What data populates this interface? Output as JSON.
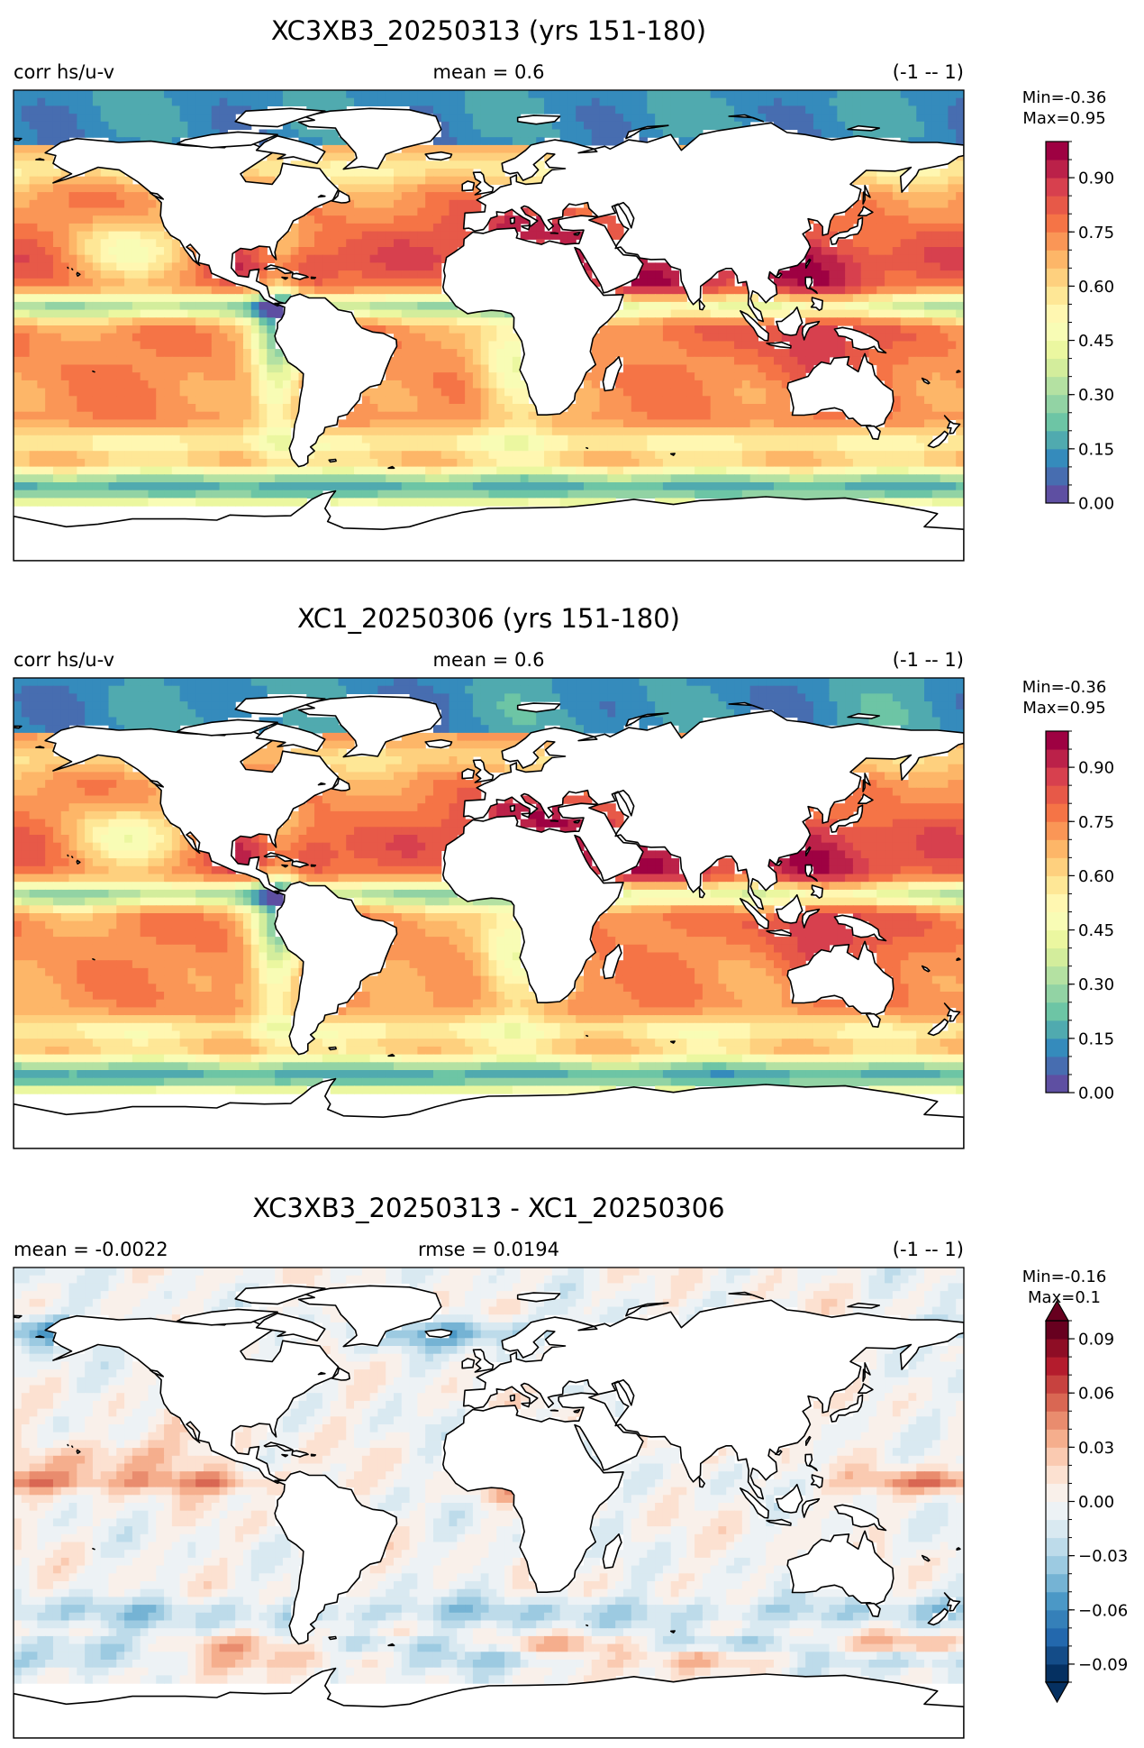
{
  "chart_data": [
    {
      "type": "heatmap",
      "title": "XC3XB3_20250313 (yrs 151-180)",
      "left_label": "corr hs/u-v",
      "center_label": "mean = 0.6",
      "right_label": "(-1 -- 1)",
      "colorbar": {
        "stats": [
          "Min=-0.36",
          "Max=0.95"
        ],
        "range": [
          0,
          1
        ],
        "extend": false,
        "colormap": "Spectral_r",
        "ticks": [
          "0.00",
          "0.15",
          "0.30",
          "0.45",
          "0.60",
          "0.75",
          "0.90"
        ],
        "tick_values": [
          0,
          0.15,
          0.3,
          0.45,
          0.6,
          0.75,
          0.9
        ],
        "levels": 20
      }
    },
    {
      "type": "heatmap",
      "title": "XC1_20250306 (yrs 151-180)",
      "left_label": "corr hs/u-v",
      "center_label": "mean = 0.6",
      "right_label": "(-1 -- 1)",
      "colorbar": {
        "stats": [
          "Min=-0.36",
          "Max=0.95"
        ],
        "range": [
          0,
          1
        ],
        "extend": false,
        "colormap": "Spectral_r",
        "ticks": [
          "0.00",
          "0.15",
          "0.30",
          "0.45",
          "0.60",
          "0.75",
          "0.90"
        ],
        "tick_values": [
          0,
          0.15,
          0.3,
          0.45,
          0.6,
          0.75,
          0.9
        ],
        "levels": 20
      }
    },
    {
      "type": "heatmap",
      "title": "XC3XB3_20250313 - XC1_20250306",
      "left_label": "mean = -0.0022",
      "center_label": "rmse = 0.0194",
      "right_label": "(-1 -- 1)",
      "colorbar": {
        "stats": [
          "Min=-0.16",
          "Max=0.1"
        ],
        "range": [
          -0.1,
          0.1
        ],
        "extend": true,
        "colormap": "RdBu_r",
        "ticks": [
          "0.09",
          "0.06",
          "0.03",
          "0.00",
          "−0.03",
          "−0.06",
          "−0.09"
        ],
        "tick_values": [
          0.09,
          0.06,
          0.03,
          0.0,
          -0.03,
          -0.06,
          -0.09
        ],
        "levels": 20
      }
    }
  ]
}
